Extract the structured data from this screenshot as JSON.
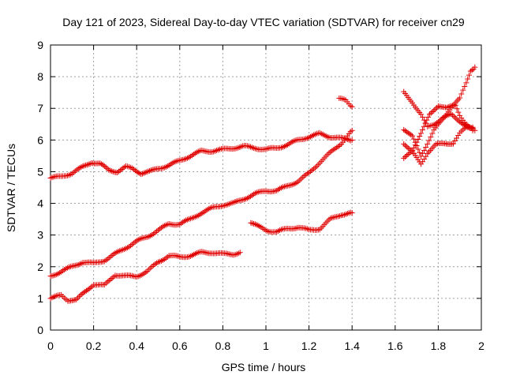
{
  "chart_data": {
    "type": "scatter",
    "title": "Day 121 of 2023, Sidereal Day-to-day VTEC variation (SDTVAR) for receiver cn29",
    "xlabel": "GPS time / hours",
    "ylabel": "SDTVAR / TECUs",
    "xlim": [
      0,
      2
    ],
    "ylim": [
      0,
      9
    ],
    "xticks": [
      "0",
      "0.2",
      "0.4",
      "0.6",
      "0.8",
      "1",
      "1.2",
      "1.4",
      "1.6",
      "1.8",
      "2"
    ],
    "yticks": [
      "0",
      "1",
      "2",
      "3",
      "4",
      "5",
      "6",
      "7",
      "8",
      "9"
    ],
    "grid": true,
    "marker": "+",
    "color": "#e00000",
    "series": [
      {
        "points": [
          [
            0,
            4.8
          ],
          [
            0.05,
            4.85
          ],
          [
            0.1,
            4.95
          ],
          [
            0.15,
            5.15
          ],
          [
            0.19,
            5.3
          ],
          [
            0.23,
            5.25
          ],
          [
            0.27,
            5.05
          ],
          [
            0.31,
            5.0
          ],
          [
            0.35,
            5.15
          ],
          [
            0.38,
            5.1
          ],
          [
            0.42,
            4.95
          ],
          [
            0.46,
            5.0
          ],
          [
            0.5,
            5.1
          ],
          [
            0.55,
            5.2
          ],
          [
            0.6,
            5.35
          ],
          [
            0.65,
            5.5
          ],
          [
            0.7,
            5.65
          ],
          [
            0.75,
            5.65
          ],
          [
            0.8,
            5.7
          ],
          [
            0.85,
            5.75
          ],
          [
            0.9,
            5.8
          ],
          [
            0.95,
            5.75
          ],
          [
            1.0,
            5.7
          ],
          [
            1.05,
            5.75
          ],
          [
            1.1,
            5.85
          ],
          [
            1.15,
            6.0
          ],
          [
            1.2,
            6.1
          ],
          [
            1.25,
            6.2
          ],
          [
            1.3,
            6.1
          ],
          [
            1.35,
            6.05
          ],
          [
            1.4,
            6.0
          ]
        ]
      },
      {
        "points": [
          [
            0,
            1.7
          ],
          [
            0.05,
            1.85
          ],
          [
            0.1,
            2.0
          ],
          [
            0.15,
            2.15
          ],
          [
            0.2,
            2.1
          ],
          [
            0.25,
            2.2
          ],
          [
            0.3,
            2.4
          ],
          [
            0.35,
            2.6
          ],
          [
            0.4,
            2.8
          ],
          [
            0.45,
            2.95
          ],
          [
            0.5,
            3.15
          ],
          [
            0.55,
            3.35
          ],
          [
            0.6,
            3.35
          ],
          [
            0.65,
            3.5
          ],
          [
            0.7,
            3.7
          ],
          [
            0.75,
            3.85
          ],
          [
            0.8,
            3.95
          ],
          [
            0.85,
            4.0
          ],
          [
            0.9,
            4.15
          ],
          [
            0.95,
            4.3
          ],
          [
            1.0,
            4.4
          ],
          [
            1.05,
            4.4
          ],
          [
            1.1,
            4.55
          ],
          [
            1.15,
            4.7
          ],
          [
            1.2,
            4.95
          ],
          [
            1.25,
            5.3
          ],
          [
            1.3,
            5.6
          ],
          [
            1.35,
            5.9
          ],
          [
            1.4,
            6.3
          ]
        ]
      },
      {
        "points": [
          [
            0,
            1.0
          ],
          [
            0.05,
            1.1
          ],
          [
            0.08,
            0.95
          ],
          [
            0.12,
            0.95
          ],
          [
            0.16,
            1.2
          ],
          [
            0.2,
            1.45
          ],
          [
            0.25,
            1.4
          ],
          [
            0.3,
            1.75
          ],
          [
            0.35,
            1.7
          ],
          [
            0.4,
            1.7
          ],
          [
            0.45,
            1.85
          ],
          [
            0.5,
            2.15
          ],
          [
            0.55,
            2.35
          ],
          [
            0.6,
            2.3
          ],
          [
            0.65,
            2.35
          ],
          [
            0.7,
            2.45
          ],
          [
            0.75,
            2.45
          ],
          [
            0.8,
            2.4
          ],
          [
            0.85,
            2.4
          ],
          [
            0.88,
            2.45
          ]
        ]
      },
      {
        "points": [
          [
            0.93,
            3.4
          ],
          [
            0.97,
            3.25
          ],
          [
            1.0,
            3.15
          ],
          [
            1.05,
            3.1
          ],
          [
            1.1,
            3.2
          ],
          [
            1.15,
            3.25
          ],
          [
            1.2,
            3.15
          ],
          [
            1.25,
            3.2
          ],
          [
            1.3,
            3.5
          ],
          [
            1.35,
            3.65
          ],
          [
            1.4,
            3.7
          ]
        ]
      },
      {
        "points": [
          [
            1.34,
            7.3
          ],
          [
            1.37,
            7.25
          ],
          [
            1.4,
            7.05
          ]
        ]
      },
      {
        "points": [
          [
            1.64,
            7.5
          ],
          [
            1.68,
            7.2
          ],
          [
            1.72,
            6.8
          ],
          [
            1.75,
            6.4
          ],
          [
            1.78,
            6.5
          ],
          [
            1.82,
            6.7
          ],
          [
            1.86,
            6.8
          ],
          [
            1.9,
            6.6
          ],
          [
            1.94,
            6.4
          ],
          [
            1.97,
            6.3
          ]
        ]
      },
      {
        "points": [
          [
            1.64,
            6.35
          ],
          [
            1.68,
            6.1
          ],
          [
            1.72,
            5.5
          ],
          [
            1.75,
            5.9
          ],
          [
            1.78,
            6.3
          ],
          [
            1.82,
            6.65
          ],
          [
            1.86,
            7.05
          ],
          [
            1.9,
            7.3
          ],
          [
            1.93,
            7.8
          ],
          [
            1.95,
            8.2
          ],
          [
            1.97,
            8.3
          ]
        ]
      },
      {
        "points": [
          [
            1.64,
            5.4
          ],
          [
            1.68,
            5.7
          ],
          [
            1.72,
            6.2
          ],
          [
            1.76,
            6.8
          ],
          [
            1.8,
            7.1
          ],
          [
            1.84,
            7.0
          ],
          [
            1.88,
            7.1
          ],
          [
            1.9,
            6.8
          ],
          [
            1.93,
            6.5
          ],
          [
            1.96,
            6.3
          ]
        ]
      },
      {
        "points": [
          [
            1.64,
            5.9
          ],
          [
            1.68,
            5.6
          ],
          [
            1.72,
            5.25
          ],
          [
            1.75,
            5.6
          ],
          [
            1.79,
            5.85
          ],
          [
            1.83,
            5.9
          ],
          [
            1.87,
            5.9
          ],
          [
            1.9,
            6.2
          ],
          [
            1.93,
            6.4
          ],
          [
            1.96,
            6.4
          ]
        ]
      }
    ]
  }
}
